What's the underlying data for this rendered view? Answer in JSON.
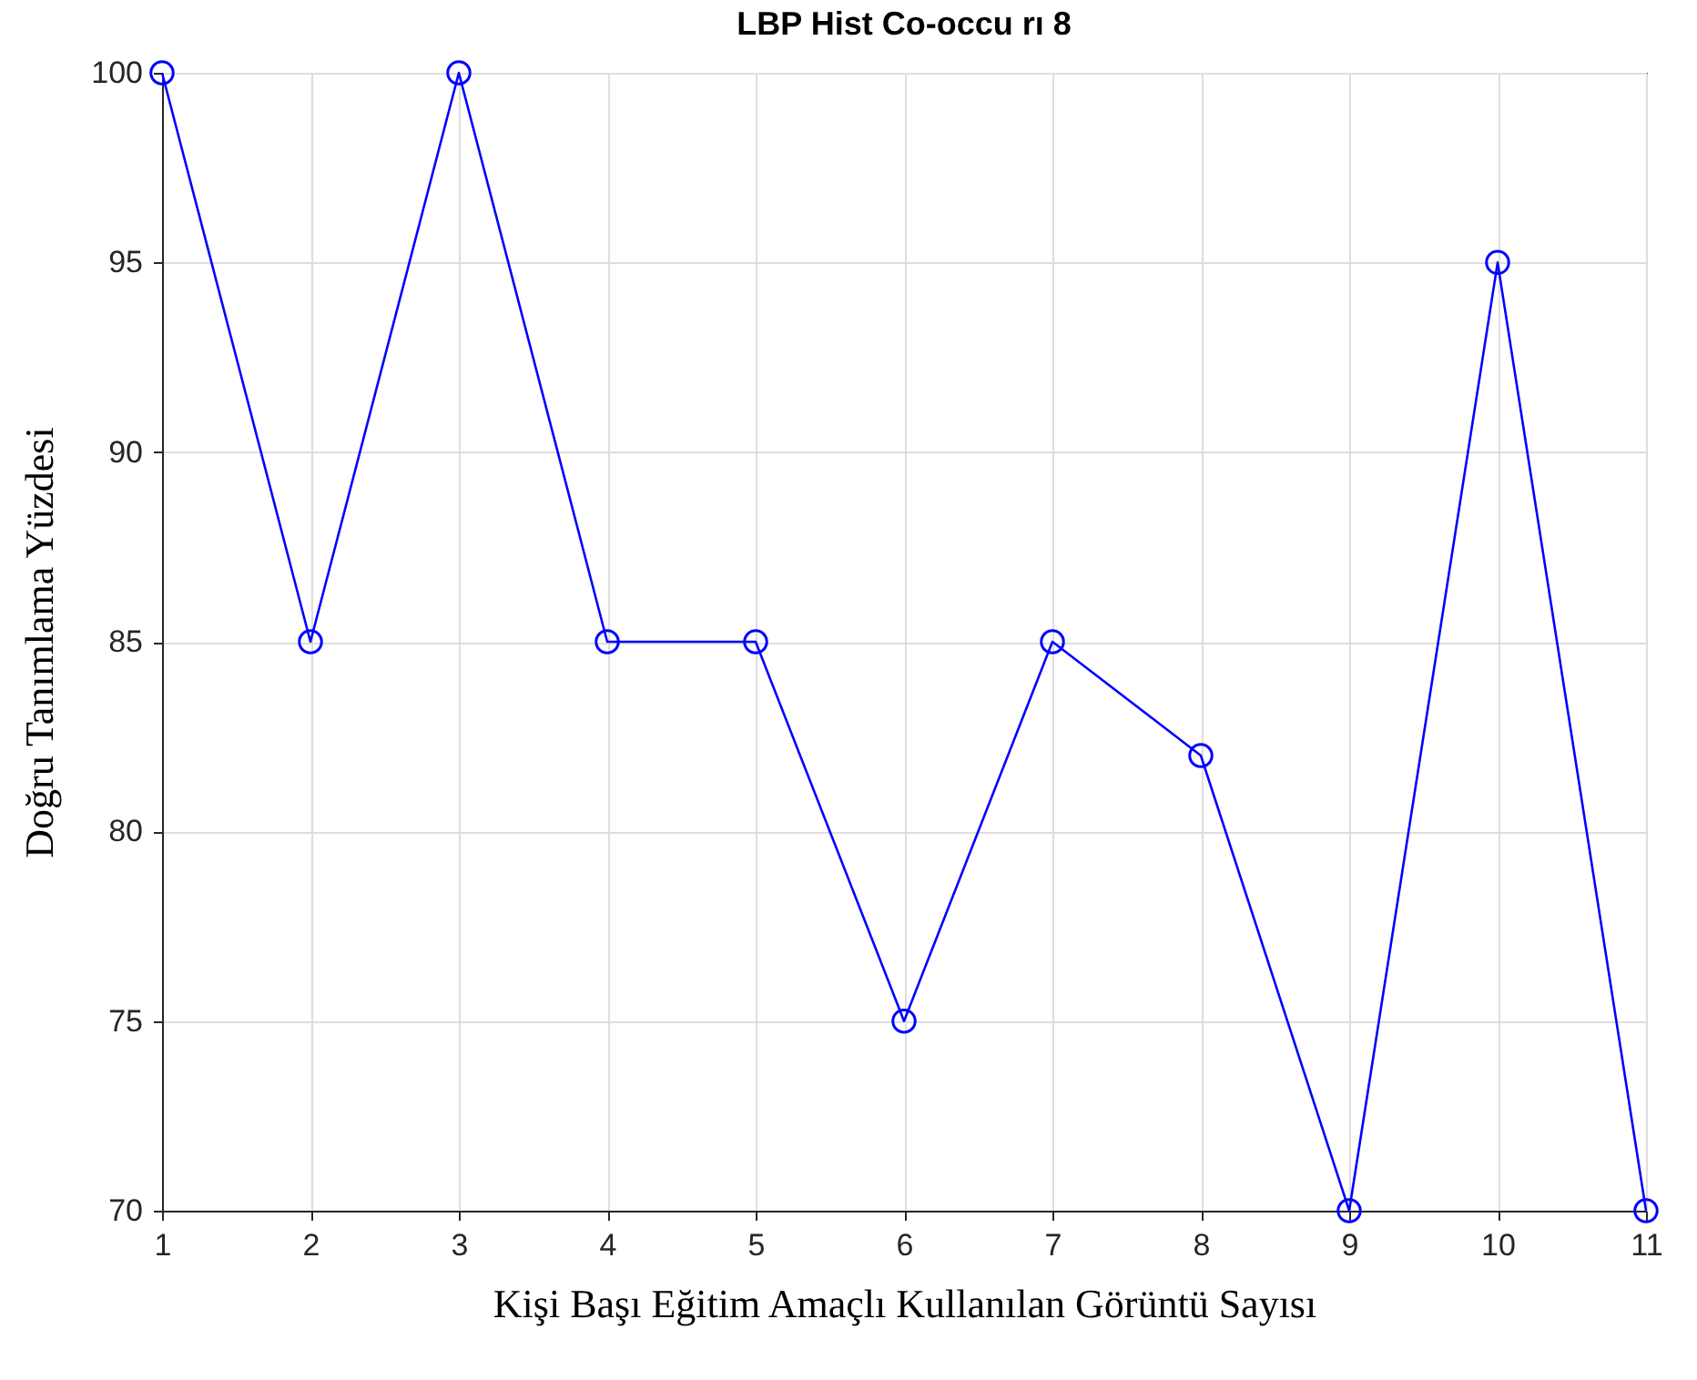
{
  "chart_data": {
    "type": "line",
    "title": "LBP Hist Co-occu rı 8",
    "xlabel": "Kişi Başı Eğitim Amaçlı Kullanılan Görüntü Sayısı",
    "ylabel": "Doğru Tanımlama Yüzdesi",
    "x": [
      1,
      2,
      3,
      4,
      5,
      6,
      7,
      8,
      9,
      10,
      11
    ],
    "series": [
      {
        "color": "#0000ff",
        "values": [
          100,
          85,
          100,
          85,
          85,
          75,
          85,
          82,
          70,
          95,
          70
        ]
      }
    ],
    "xlim": [
      1,
      11
    ],
    "xticks": [
      1,
      2,
      3,
      4,
      5,
      6,
      7,
      8,
      9,
      10,
      11
    ],
    "ylim": [
      70,
      100
    ],
    "yticks": [
      70,
      75,
      80,
      85,
      90,
      95,
      100
    ],
    "grid": true,
    "marker": "circle",
    "line_style": "solid"
  }
}
